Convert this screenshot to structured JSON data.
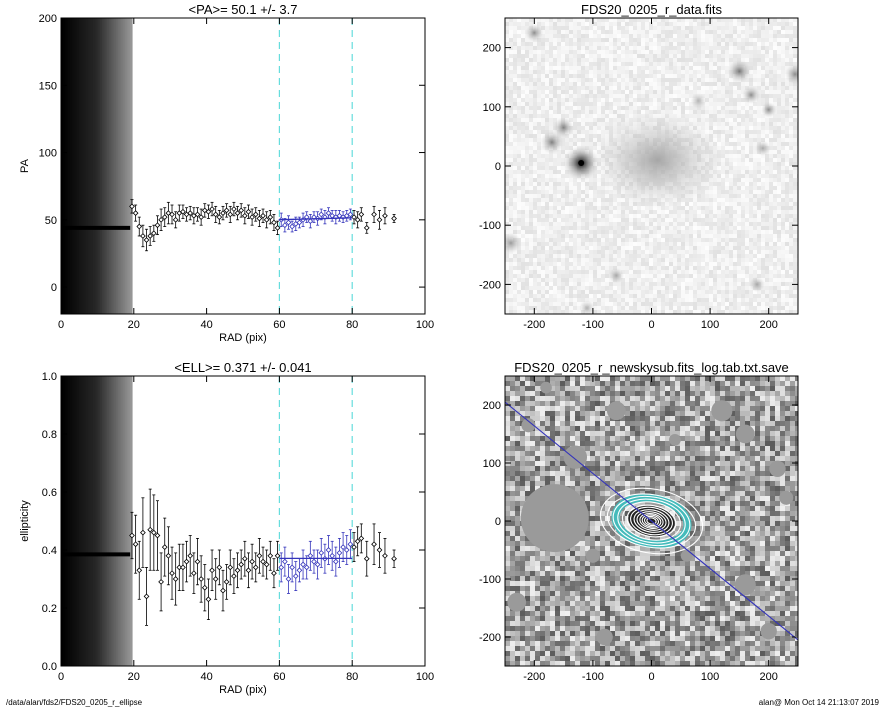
{
  "footer": {
    "path": "/data/alan/fds2/FDS20_0205_r_ellipse",
    "stamp": "alan@  Mon Oct 14 21:13:07 2019"
  },
  "colors": {
    "fit_line": "#3333bb",
    "dashed_marker": "#66dddd",
    "model_contour_fill": "#44bbbb",
    "contours": "#ffffff",
    "data_points": "#000000"
  },
  "chart_data": [
    {
      "id": "pa-profile",
      "type": "scatter",
      "title": "<PA>=  50.1 +/-   3.7",
      "xlabel": "RAD (pix)",
      "ylabel": "PA",
      "xlim": [
        0,
        100
      ],
      "ylim": [
        -20,
        200
      ],
      "xticks": [
        0,
        20,
        40,
        60,
        80,
        100
      ],
      "yticks": [
        0,
        50,
        100,
        150,
        200
      ],
      "dashed_vlines": [
        60,
        80
      ],
      "fit_line": {
        "x": [
          60,
          80
        ],
        "y": [
          50.1,
          51.5
        ]
      },
      "dark_band_xrange": [
        0,
        19.5
      ],
      "thick_segment": {
        "x": [
          0,
          19
        ],
        "y": 44
      },
      "points": [
        {
          "x": 19.5,
          "y": 60,
          "err": 5
        },
        {
          "x": 20.5,
          "y": 55,
          "err": 6
        },
        {
          "x": 21.5,
          "y": 45,
          "err": 7
        },
        {
          "x": 22.5,
          "y": 38,
          "err": 8
        },
        {
          "x": 23.5,
          "y": 35,
          "err": 8
        },
        {
          "x": 24.5,
          "y": 38,
          "err": 7
        },
        {
          "x": 25.5,
          "y": 40,
          "err": 6
        },
        {
          "x": 26.5,
          "y": 46,
          "err": 7
        },
        {
          "x": 27.5,
          "y": 50,
          "err": 8
        },
        {
          "x": 28.5,
          "y": 52,
          "err": 7
        },
        {
          "x": 29.5,
          "y": 55,
          "err": 8
        },
        {
          "x": 30.5,
          "y": 54,
          "err": 7
        },
        {
          "x": 31.5,
          "y": 50,
          "err": 6
        },
        {
          "x": 32.5,
          "y": 55,
          "err": 6
        },
        {
          "x": 33.5,
          "y": 56,
          "err": 5
        },
        {
          "x": 34.5,
          "y": 54,
          "err": 5
        },
        {
          "x": 35.5,
          "y": 55,
          "err": 5
        },
        {
          "x": 36.5,
          "y": 53,
          "err": 6
        },
        {
          "x": 37.5,
          "y": 54,
          "err": 5
        },
        {
          "x": 38.5,
          "y": 52,
          "err": 6
        },
        {
          "x": 39.5,
          "y": 57,
          "err": 5
        },
        {
          "x": 40.5,
          "y": 56,
          "err": 5
        },
        {
          "x": 41.5,
          "y": 58,
          "err": 5
        },
        {
          "x": 42.5,
          "y": 54,
          "err": 6
        },
        {
          "x": 43.5,
          "y": 52,
          "err": 5
        },
        {
          "x": 44.5,
          "y": 55,
          "err": 5
        },
        {
          "x": 45.5,
          "y": 57,
          "err": 5
        },
        {
          "x": 46.5,
          "y": 54,
          "err": 6
        },
        {
          "x": 47.5,
          "y": 58,
          "err": 5
        },
        {
          "x": 48.5,
          "y": 55,
          "err": 5
        },
        {
          "x": 49.5,
          "y": 57,
          "err": 5
        },
        {
          "x": 50.5,
          "y": 53,
          "err": 6
        },
        {
          "x": 51.5,
          "y": 56,
          "err": 5
        },
        {
          "x": 52.5,
          "y": 52,
          "err": 6
        },
        {
          "x": 53.5,
          "y": 54,
          "err": 5
        },
        {
          "x": 54.5,
          "y": 51,
          "err": 6
        },
        {
          "x": 55.5,
          "y": 53,
          "err": 5
        },
        {
          "x": 56.5,
          "y": 50,
          "err": 6
        },
        {
          "x": 57.5,
          "y": 52,
          "err": 5
        },
        {
          "x": 58.5,
          "y": 48,
          "err": 6
        },
        {
          "x": 59.5,
          "y": 44,
          "err": 5
        },
        {
          "x": 60.5,
          "y": 50,
          "err": 5
        },
        {
          "x": 61.5,
          "y": 46,
          "err": 5
        },
        {
          "x": 62.5,
          "y": 48,
          "err": 5
        },
        {
          "x": 63.5,
          "y": 45,
          "err": 4
        },
        {
          "x": 64.5,
          "y": 47,
          "err": 5
        },
        {
          "x": 65.5,
          "y": 48,
          "err": 4
        },
        {
          "x": 66.5,
          "y": 50,
          "err": 5
        },
        {
          "x": 67.5,
          "y": 52,
          "err": 4
        },
        {
          "x": 68.5,
          "y": 49,
          "err": 5
        },
        {
          "x": 69.5,
          "y": 52,
          "err": 4
        },
        {
          "x": 70.5,
          "y": 51,
          "err": 5
        },
        {
          "x": 71.5,
          "y": 54,
          "err": 4
        },
        {
          "x": 72.5,
          "y": 52,
          "err": 5
        },
        {
          "x": 73.5,
          "y": 55,
          "err": 4
        },
        {
          "x": 74.5,
          "y": 53,
          "err": 4
        },
        {
          "x": 75.5,
          "y": 52,
          "err": 5
        },
        {
          "x": 76.5,
          "y": 53,
          "err": 4
        },
        {
          "x": 77.5,
          "y": 52,
          "err": 4
        },
        {
          "x": 78.5,
          "y": 53,
          "err": 4
        },
        {
          "x": 79.5,
          "y": 54,
          "err": 4
        },
        {
          "x": 80.5,
          "y": 52,
          "err": 5
        },
        {
          "x": 81.5,
          "y": 50,
          "err": 6
        },
        {
          "x": 82.5,
          "y": 54,
          "err": 5
        },
        {
          "x": 84,
          "y": 44,
          "err": 4
        },
        {
          "x": 86,
          "y": 54,
          "err": 6
        },
        {
          "x": 87.5,
          "y": 50,
          "err": 7
        },
        {
          "x": 89,
          "y": 53,
          "err": 6
        },
        {
          "x": 91.5,
          "y": 51,
          "err": 3
        }
      ]
    },
    {
      "id": "image-data",
      "type": "heatmap",
      "title": "FDS20_0205_r_data.fits",
      "xlim": [
        -250,
        250
      ],
      "ylim": [
        -250,
        250
      ],
      "xticks": [
        -200,
        -100,
        0,
        100,
        200
      ],
      "yticks": [
        -200,
        -100,
        0,
        100,
        200
      ],
      "sources": [
        {
          "x": -120,
          "y": 5,
          "r": 14,
          "peak": 1.0
        },
        {
          "x": 10,
          "y": 10,
          "r": 50,
          "peak": 0.35
        },
        {
          "x": -170,
          "y": 40,
          "r": 9,
          "peak": 0.5
        },
        {
          "x": -150,
          "y": 65,
          "r": 8,
          "peak": 0.5
        },
        {
          "x": -200,
          "y": 225,
          "r": 7,
          "peak": 0.45
        },
        {
          "x": 150,
          "y": 160,
          "r": 9,
          "peak": 0.55
        },
        {
          "x": 170,
          "y": 120,
          "r": 7,
          "peak": 0.45
        },
        {
          "x": 200,
          "y": 95,
          "r": 6,
          "peak": 0.45
        },
        {
          "x": 245,
          "y": 155,
          "r": 8,
          "peak": 0.45
        },
        {
          "x": 190,
          "y": 30,
          "r": 6,
          "peak": 0.35
        },
        {
          "x": -240,
          "y": -130,
          "r": 8,
          "peak": 0.4
        },
        {
          "x": -60,
          "y": -185,
          "r": 6,
          "peak": 0.35
        },
        {
          "x": 180,
          "y": -200,
          "r": 6,
          "peak": 0.35
        },
        {
          "x": -110,
          "y": -240,
          "r": 6,
          "peak": 0.3
        },
        {
          "x": 80,
          "y": 110,
          "r": 6,
          "peak": 0.3
        }
      ]
    },
    {
      "id": "ell-profile",
      "type": "scatter",
      "title": "<ELL>= 0.371 +/-  0.041",
      "xlabel": "RAD (pix)",
      "ylabel": "ellipticity",
      "xlim": [
        0,
        100
      ],
      "ylim": [
        0,
        1.0
      ],
      "xticks": [
        0,
        20,
        40,
        60,
        80,
        100
      ],
      "yticks": [
        0.0,
        0.2,
        0.4,
        0.6,
        0.8,
        1.0
      ],
      "dashed_vlines": [
        60,
        80
      ],
      "fit_line": {
        "x": [
          60,
          80
        ],
        "y": [
          0.371,
          0.371
        ]
      },
      "dark_band_xrange": [
        0,
        19.5
      ],
      "thick_segment": {
        "x": [
          0,
          19
        ],
        "y": 0.385
      },
      "points": [
        {
          "x": 19.5,
          "y": 0.45,
          "err": 0.08
        },
        {
          "x": 20.5,
          "y": 0.42,
          "err": 0.1
        },
        {
          "x": 21.5,
          "y": 0.33,
          "err": 0.1
        },
        {
          "x": 22.5,
          "y": 0.46,
          "err": 0.12
        },
        {
          "x": 23.5,
          "y": 0.24,
          "err": 0.1
        },
        {
          "x": 24.5,
          "y": 0.47,
          "err": 0.14
        },
        {
          "x": 25.5,
          "y": 0.46,
          "err": 0.13
        },
        {
          "x": 26.5,
          "y": 0.45,
          "err": 0.12
        },
        {
          "x": 27.5,
          "y": 0.29,
          "err": 0.1
        },
        {
          "x": 28.5,
          "y": 0.41,
          "err": 0.1
        },
        {
          "x": 29.5,
          "y": 0.38,
          "err": 0.1
        },
        {
          "x": 30.5,
          "y": 0.32,
          "err": 0.09
        },
        {
          "x": 31.5,
          "y": 0.3,
          "err": 0.09
        },
        {
          "x": 32.5,
          "y": 0.34,
          "err": 0.08
        },
        {
          "x": 33.5,
          "y": 0.34,
          "err": 0.08
        },
        {
          "x": 34.5,
          "y": 0.36,
          "err": 0.07
        },
        {
          "x": 35.5,
          "y": 0.38,
          "err": 0.07
        },
        {
          "x": 36.5,
          "y": 0.32,
          "err": 0.07
        },
        {
          "x": 37.5,
          "y": 0.36,
          "err": 0.08
        },
        {
          "x": 38.5,
          "y": 0.3,
          "err": 0.08
        },
        {
          "x": 39.5,
          "y": 0.27,
          "err": 0.08
        },
        {
          "x": 40.5,
          "y": 0.23,
          "err": 0.07
        },
        {
          "x": 41.5,
          "y": 0.33,
          "err": 0.07
        },
        {
          "x": 42.5,
          "y": 0.3,
          "err": 0.07
        },
        {
          "x": 43.5,
          "y": 0.34,
          "err": 0.06
        },
        {
          "x": 44.5,
          "y": 0.26,
          "err": 0.07
        },
        {
          "x": 45.5,
          "y": 0.29,
          "err": 0.06
        },
        {
          "x": 46.5,
          "y": 0.34,
          "err": 0.06
        },
        {
          "x": 47.5,
          "y": 0.31,
          "err": 0.06
        },
        {
          "x": 48.5,
          "y": 0.33,
          "err": 0.06
        },
        {
          "x": 49.5,
          "y": 0.35,
          "err": 0.05
        },
        {
          "x": 50.5,
          "y": 0.37,
          "err": 0.06
        },
        {
          "x": 51.5,
          "y": 0.33,
          "err": 0.06
        },
        {
          "x": 52.5,
          "y": 0.36,
          "err": 0.06
        },
        {
          "x": 53.5,
          "y": 0.34,
          "err": 0.05
        },
        {
          "x": 54.5,
          "y": 0.38,
          "err": 0.06
        },
        {
          "x": 55.5,
          "y": 0.36,
          "err": 0.05
        },
        {
          "x": 56.5,
          "y": 0.35,
          "err": 0.05
        },
        {
          "x": 57.5,
          "y": 0.38,
          "err": 0.05
        },
        {
          "x": 58.5,
          "y": 0.32,
          "err": 0.05
        },
        {
          "x": 59.5,
          "y": 0.38,
          "err": 0.05
        },
        {
          "x": 60.5,
          "y": 0.34,
          "err": 0.05
        },
        {
          "x": 61.5,
          "y": 0.36,
          "err": 0.05
        },
        {
          "x": 62.5,
          "y": 0.3,
          "err": 0.05
        },
        {
          "x": 63.5,
          "y": 0.34,
          "err": 0.05
        },
        {
          "x": 64.5,
          "y": 0.31,
          "err": 0.05
        },
        {
          "x": 65.5,
          "y": 0.33,
          "err": 0.04
        },
        {
          "x": 66.5,
          "y": 0.35,
          "err": 0.05
        },
        {
          "x": 67.5,
          "y": 0.34,
          "err": 0.04
        },
        {
          "x": 68.5,
          "y": 0.38,
          "err": 0.05
        },
        {
          "x": 69.5,
          "y": 0.36,
          "err": 0.04
        },
        {
          "x": 70.5,
          "y": 0.35,
          "err": 0.05
        },
        {
          "x": 71.5,
          "y": 0.39,
          "err": 0.05
        },
        {
          "x": 72.5,
          "y": 0.37,
          "err": 0.05
        },
        {
          "x": 73.5,
          "y": 0.4,
          "err": 0.05
        },
        {
          "x": 74.5,
          "y": 0.38,
          "err": 0.05
        },
        {
          "x": 75.5,
          "y": 0.36,
          "err": 0.05
        },
        {
          "x": 76.5,
          "y": 0.39,
          "err": 0.05
        },
        {
          "x": 77.5,
          "y": 0.41,
          "err": 0.05
        },
        {
          "x": 78.5,
          "y": 0.4,
          "err": 0.05
        },
        {
          "x": 79.5,
          "y": 0.42,
          "err": 0.05
        },
        {
          "x": 80.5,
          "y": 0.41,
          "err": 0.05
        },
        {
          "x": 81.5,
          "y": 0.43,
          "err": 0.05
        },
        {
          "x": 82.5,
          "y": 0.44,
          "err": 0.05
        },
        {
          "x": 84,
          "y": 0.37,
          "err": 0.06
        },
        {
          "x": 86,
          "y": 0.42,
          "err": 0.07
        },
        {
          "x": 87.5,
          "y": 0.4,
          "err": 0.06
        },
        {
          "x": 89,
          "y": 0.38,
          "err": 0.06
        },
        {
          "x": 91.5,
          "y": 0.37,
          "err": 0.03
        }
      ]
    },
    {
      "id": "image-model",
      "type": "heatmap",
      "title": "FDS20_0205_r_newskysub.fits_log.tab.txt.save",
      "xlim": [
        -250,
        250
      ],
      "ylim": [
        -250,
        250
      ],
      "xticks": [
        -200,
        -100,
        0,
        100,
        200
      ],
      "yticks": [
        -200,
        -100,
        0,
        100,
        200
      ],
      "pa_line": {
        "x": [
          -250,
          250
        ],
        "y": [
          205,
          -205
        ]
      },
      "ellipses": [
        {
          "a": 8,
          "ell": 0.35
        },
        {
          "a": 12,
          "ell": 0.36
        },
        {
          "a": 16,
          "ell": 0.37
        },
        {
          "a": 20,
          "ell": 0.38
        },
        {
          "a": 25,
          "ell": 0.38
        },
        {
          "a": 30,
          "ell": 0.37
        },
        {
          "a": 36,
          "ell": 0.36
        },
        {
          "a": 42,
          "ell": 0.37
        },
        {
          "a": 50,
          "ell": 0.36
        },
        {
          "a": 58,
          "ell": 0.37
        },
        {
          "a": 66,
          "ell": 0.38
        },
        {
          "a": 76,
          "ell": 0.41
        },
        {
          "a": 88,
          "ell": 0.38
        }
      ],
      "ellipse_pa_deg": 50,
      "masks": [
        {
          "x": -165,
          "y": 5,
          "r": 58
        },
        {
          "x": -130,
          "y": 110,
          "r": 20
        },
        {
          "x": -60,
          "y": 190,
          "r": 16
        },
        {
          "x": 120,
          "y": 190,
          "r": 18
        },
        {
          "x": 160,
          "y": 150,
          "r": 16
        },
        {
          "x": 215,
          "y": 90,
          "r": 14
        },
        {
          "x": -210,
          "y": 165,
          "r": 12
        },
        {
          "x": -230,
          "y": -140,
          "r": 16
        },
        {
          "x": 160,
          "y": -110,
          "r": 18
        },
        {
          "x": -80,
          "y": -200,
          "r": 14
        },
        {
          "x": 200,
          "y": -190,
          "r": 14
        },
        {
          "x": 60,
          "y": -60,
          "r": 10
        },
        {
          "x": -100,
          "y": -60,
          "r": 12
        },
        {
          "x": 230,
          "y": 40,
          "r": 12
        },
        {
          "x": 40,
          "y": 140,
          "r": 10
        },
        {
          "x": -180,
          "y": 230,
          "r": 10
        }
      ]
    }
  ]
}
